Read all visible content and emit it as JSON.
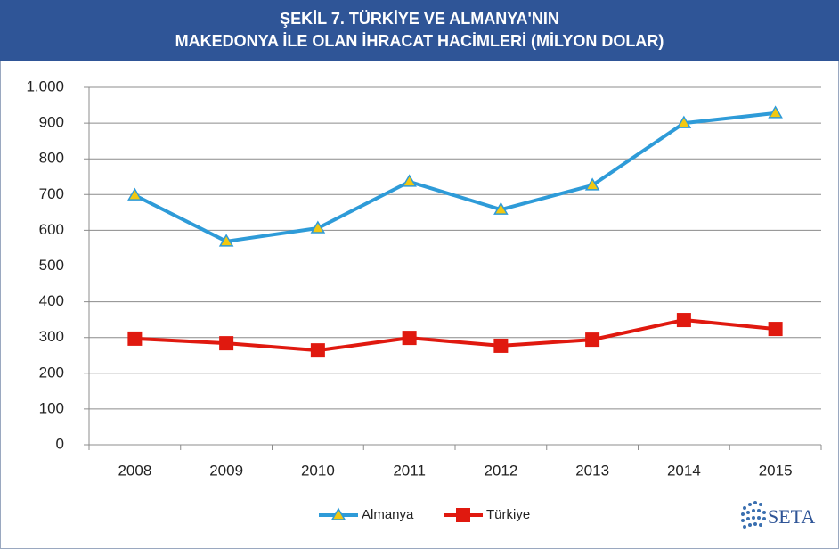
{
  "chart_data": {
    "type": "line",
    "title": [
      "ŞEKİL 7. TÜRKİYE VE ALMANYA'NIN",
      "MAKEDONYA İLE OLAN İHRACAT HACİMLERİ (MİLYON DOLAR)"
    ],
    "categories": [
      "2008",
      "2009",
      "2010",
      "2011",
      "2012",
      "2013",
      "2014",
      "2015"
    ],
    "series": [
      {
        "name": "Almanya",
        "color": "#2e9bd8",
        "marker": "triangle",
        "marker_color": "#f2c811",
        "values": [
          698,
          569,
          606,
          736,
          658,
          726,
          900,
          928
        ]
      },
      {
        "name": "Türkiye",
        "color": "#e0190f",
        "marker": "square",
        "marker_color": "#e0190f",
        "values": [
          297,
          284,
          264,
          299,
          277,
          294,
          349,
          324
        ]
      }
    ],
    "ylim": [
      0,
      1000
    ],
    "yticks": [
      0,
      100,
      200,
      300,
      400,
      500,
      600,
      700,
      800,
      900,
      {
        "value": 1000,
        "label": "1.000"
      }
    ],
    "grid": true,
    "legend": "bottom",
    "logo": "SETA"
  }
}
